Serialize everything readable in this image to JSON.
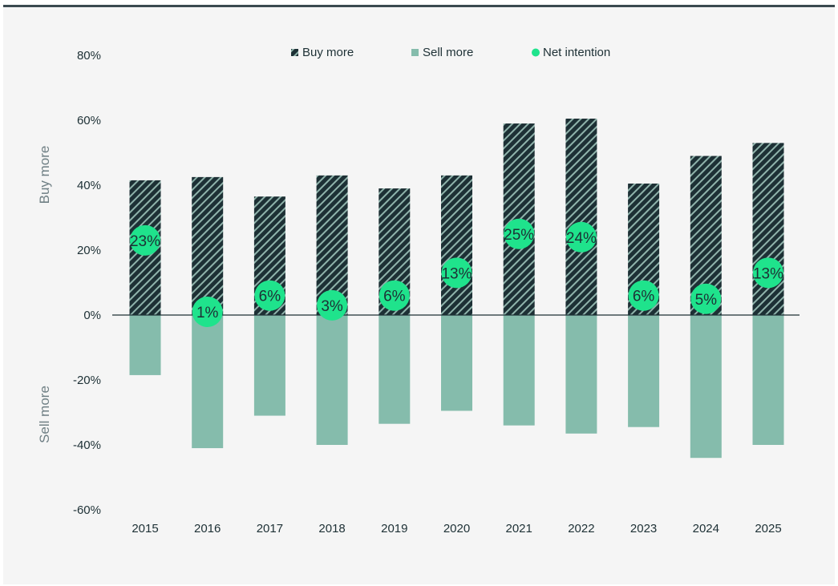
{
  "chart_data": {
    "type": "bar",
    "categories": [
      "2015",
      "2016",
      "2017",
      "2018",
      "2019",
      "2020",
      "2021",
      "2022",
      "2023",
      "2024",
      "2025"
    ],
    "series": [
      {
        "name": "Buy more",
        "values": [
          41.5,
          42.5,
          36.5,
          43,
          39,
          43,
          59,
          60.5,
          40.5,
          49,
          53
        ],
        "color": "#1d3035",
        "pattern": "diagonal-stripes"
      },
      {
        "name": "Sell more",
        "values": [
          -18.5,
          -41,
          -31,
          -40,
          -33.5,
          -29.5,
          -34,
          -36.5,
          -34.5,
          -44,
          -40
        ],
        "color": "#85bcac"
      },
      {
        "name": "Net intention",
        "values": [
          23,
          1,
          6,
          3,
          6,
          13,
          25,
          24,
          6,
          5,
          13
        ],
        "color": "#1fe38c"
      }
    ],
    "net_labels": [
      "23%",
      "1%",
      "6%",
      "3%",
      "6%",
      "13%",
      "25%",
      "24%",
      "6%",
      "5%",
      "13%"
    ],
    "ylim": [
      -60,
      80
    ],
    "yticks": [
      80,
      60,
      40,
      20,
      0,
      -20,
      -40,
      -60
    ],
    "ytick_labels": [
      "80%",
      "60%",
      "40%",
      "20%",
      "0%",
      "-20%",
      "-40%",
      "-60%"
    ],
    "ylabel_top": "Buy more",
    "ylabel_bottom": "Sell more",
    "legend": [
      "Buy more",
      "Sell more",
      "Net intention"
    ],
    "legend_position": "top-center"
  }
}
